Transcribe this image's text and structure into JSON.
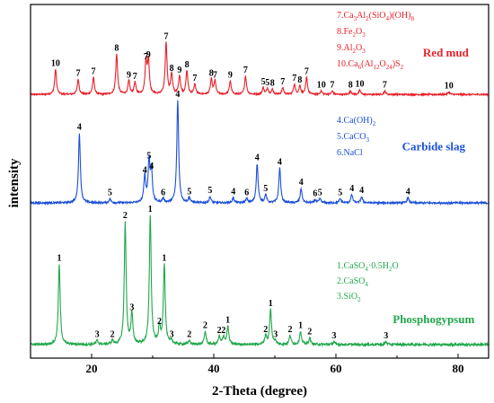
{
  "chart_data": {
    "type": "line",
    "xlabel": "2-Theta (degree)",
    "ylabel": "intensity",
    "xlim": [
      10,
      85
    ],
    "x_ticks": [
      20,
      40,
      60,
      80
    ],
    "series": [
      {
        "name": "Red mud",
        "color": "#e8202a",
        "baseline_rel": 0.12,
        "legend": [
          "7.Ca3Al2(SiO4)(OH)8",
          "8.Fe2O3",
          "9.Al2O3",
          "10.Ca6(Al12O24)S2"
        ],
        "peaks": [
          {
            "x": 14.1,
            "h": 0.3,
            "label": "10"
          },
          {
            "x": 17.8,
            "h": 0.18,
            "label": "7"
          },
          {
            "x": 20.3,
            "h": 0.2,
            "label": "7"
          },
          {
            "x": 24.1,
            "h": 0.48,
            "label": "8"
          },
          {
            "x": 26.1,
            "h": 0.16,
            "label": "9"
          },
          {
            "x": 27.1,
            "h": 0.14,
            "label": "7"
          },
          {
            "x": 28.9,
            "h": 0.38,
            "label": "7"
          },
          {
            "x": 29.3,
            "h": 0.4,
            "label": "9"
          },
          {
            "x": 32.2,
            "h": 0.62,
            "label": "7"
          },
          {
            "x": 33.1,
            "h": 0.24,
            "label": "8"
          },
          {
            "x": 34.4,
            "h": 0.22,
            "label": "9"
          },
          {
            "x": 35.6,
            "h": 0.28,
            "label": "8"
          },
          {
            "x": 36.9,
            "h": 0.12,
            "label": "7"
          },
          {
            "x": 39.6,
            "h": 0.18,
            "label": "8"
          },
          {
            "x": 40.2,
            "h": 0.16,
            "label": "7"
          },
          {
            "x": 42.7,
            "h": 0.16,
            "label": "9"
          },
          {
            "x": 45.2,
            "h": 0.22,
            "label": "7"
          },
          {
            "x": 48.1,
            "h": 0.08,
            "label": "5"
          },
          {
            "x": 48.8,
            "h": 0.07,
            "label": "5"
          },
          {
            "x": 49.6,
            "h": 0.06,
            "label": "8"
          },
          {
            "x": 51.3,
            "h": 0.08,
            "label": "7"
          },
          {
            "x": 53.2,
            "h": 0.12,
            "label": "7"
          },
          {
            "x": 54.1,
            "h": 0.1,
            "label": "8"
          },
          {
            "x": 55.2,
            "h": 0.2,
            "label": "7"
          },
          {
            "x": 57.6,
            "h": 0.04,
            "label": "10"
          },
          {
            "x": 59.4,
            "h": 0.04,
            "label": "7"
          },
          {
            "x": 62.4,
            "h": 0.04,
            "label": "8"
          },
          {
            "x": 63.9,
            "h": 0.05,
            "label": "10"
          },
          {
            "x": 68.0,
            "h": 0.04,
            "label": "7"
          },
          {
            "x": 78.5,
            "h": 0.03,
            "label": "10"
          }
        ],
        "name_pos": [
          78,
          0.58
        ]
      },
      {
        "name": "Carbide slag",
        "color": "#1a4fd8",
        "baseline_rel": 0.08,
        "legend": [
          "4.Ca(OH)2",
          "5.CaCO3",
          "6.NaCl"
        ],
        "peaks": [
          {
            "x": 18.0,
            "h": 0.68,
            "label": "4"
          },
          {
            "x": 23.0,
            "h": 0.04,
            "label": "5"
          },
          {
            "x": 28.7,
            "h": 0.26,
            "label": "4"
          },
          {
            "x": 29.4,
            "h": 0.4,
            "label": "5"
          },
          {
            "x": 29.8,
            "h": 0.3,
            "label": "4"
          },
          {
            "x": 34.1,
            "h": 1.0,
            "label": "4"
          },
          {
            "x": 31.7,
            "h": 0.04,
            "label": "6"
          },
          {
            "x": 36.0,
            "h": 0.05,
            "label": "5"
          },
          {
            "x": 39.4,
            "h": 0.06,
            "label": "5"
          },
          {
            "x": 43.2,
            "h": 0.05,
            "label": "4"
          },
          {
            "x": 45.4,
            "h": 0.04,
            "label": "6"
          },
          {
            "x": 47.1,
            "h": 0.38,
            "label": "4"
          },
          {
            "x": 48.5,
            "h": 0.08,
            "label": "5"
          },
          {
            "x": 50.8,
            "h": 0.34,
            "label": "4"
          },
          {
            "x": 54.3,
            "h": 0.14,
            "label": "4"
          },
          {
            "x": 56.6,
            "h": 0.03,
            "label": "6"
          },
          {
            "x": 57.4,
            "h": 0.04,
            "label": "5"
          },
          {
            "x": 60.7,
            "h": 0.04,
            "label": "5"
          },
          {
            "x": 62.6,
            "h": 0.08,
            "label": "4"
          },
          {
            "x": 64.2,
            "h": 0.06,
            "label": "4"
          },
          {
            "x": 71.8,
            "h": 0.05,
            "label": "4"
          }
        ],
        "name_pos": [
          76,
          0.62
        ]
      },
      {
        "name": "Phosphogypsum",
        "color": "#1fa84a",
        "baseline_rel": 0.06,
        "legend": [
          "1.CaSO4·0.5H2O",
          "2.CaSO4",
          "3.SiO2"
        ],
        "peaks": [
          {
            "x": 14.7,
            "h": 0.62,
            "label": "1"
          },
          {
            "x": 20.9,
            "h": 0.03,
            "label": "3"
          },
          {
            "x": 23.4,
            "h": 0.03,
            "label": "2"
          },
          {
            "x": 25.5,
            "h": 0.95,
            "label": "2"
          },
          {
            "x": 26.6,
            "h": 0.24,
            "label": "3"
          },
          {
            "x": 29.6,
            "h": 1.0,
            "label": "1"
          },
          {
            "x": 31.1,
            "h": 0.13,
            "label": "2"
          },
          {
            "x": 31.9,
            "h": 0.62,
            "label": "1"
          },
          {
            "x": 33.1,
            "h": 0.03,
            "label": "3"
          },
          {
            "x": 36.0,
            "h": 0.03,
            "label": "2"
          },
          {
            "x": 38.6,
            "h": 0.1,
            "label": "2"
          },
          {
            "x": 40.9,
            "h": 0.06,
            "label": "2"
          },
          {
            "x": 41.6,
            "h": 0.06,
            "label": "2"
          },
          {
            "x": 42.3,
            "h": 0.14,
            "label": "1"
          },
          {
            "x": 48.5,
            "h": 0.07,
            "label": "2"
          },
          {
            "x": 49.3,
            "h": 0.27,
            "label": "1"
          },
          {
            "x": 50.1,
            "h": 0.03,
            "label": "3"
          },
          {
            "x": 52.5,
            "h": 0.07,
            "label": "2"
          },
          {
            "x": 54.2,
            "h": 0.1,
            "label": "1"
          },
          {
            "x": 55.7,
            "h": 0.05,
            "label": "2"
          },
          {
            "x": 59.7,
            "h": 0.02,
            "label": "3"
          },
          {
            "x": 68.2,
            "h": 0.02,
            "label": "3"
          }
        ],
        "name_pos": [
          76,
          0.25
        ]
      }
    ]
  }
}
